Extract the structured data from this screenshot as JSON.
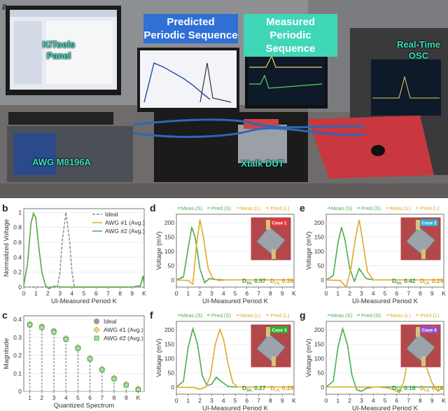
{
  "panel_labels": {
    "a": "a",
    "b": "b",
    "c": "c",
    "d": "d",
    "e": "e",
    "f": "f",
    "g": "g"
  },
  "photo": {
    "title_predicted": "Predicted\nPeriodic Sequence",
    "title_measured": "Measured\nPeriodic Sequence",
    "label_panel": "KiTools\nPanel",
    "label_osc": "Real-Time\nOSC",
    "label_awg": "AWG M8196A",
    "label_dut": "Xtalk DUT"
  },
  "colors": {
    "meas": "#4caf50",
    "pred": "#e0a92a",
    "ideal": "#8c8c8c",
    "green_text": "#3a9c3a",
    "gold_text": "#d59c1a"
  },
  "chart_data": [
    {
      "id": "b",
      "type": "line",
      "xlabel": "UI-Measured Period K",
      "ylabel": "Normalized Voltage",
      "xticks": [
        "0",
        "1",
        "2",
        "3",
        "4",
        "5",
        "6",
        "7",
        "8",
        "9",
        "K"
      ],
      "yticks": [
        "0",
        "0.2",
        "0.4",
        "0.6",
        "0.8",
        "1"
      ],
      "xlim": [
        0,
        10
      ],
      "ylim": [
        0,
        1.05
      ],
      "legend": [
        "Ideal",
        "AWG #1 (Avg.)",
        "AWG #2 (Avg.)"
      ],
      "legend_position": "top-right",
      "series": [
        {
          "name": "Ideal",
          "x": [
            0,
            2.8,
            3.0,
            3.2,
            3.5,
            3.8,
            4.0,
            4.2,
            10
          ],
          "y": [
            0,
            0,
            0.2,
            0.62,
            1.0,
            0.62,
            0.2,
            0,
            0
          ]
        },
        {
          "name": "AWG #1 (Avg.)",
          "x": [
            0,
            0.3,
            0.6,
            0.8,
            1.0,
            1.2,
            1.5,
            1.8,
            2.1,
            2.5,
            3,
            4,
            5,
            6,
            7,
            8,
            9,
            9.7,
            9.9,
            10
          ],
          "y": [
            0.03,
            0.3,
            0.85,
            0.98,
            0.92,
            0.6,
            0.2,
            0.02,
            -0.02,
            0.01,
            0,
            0,
            0,
            0,
            0,
            0,
            0,
            0.02,
            0.15,
            0.03
          ]
        },
        {
          "name": "AWG #2 (Avg.)",
          "x": [
            0,
            0.3,
            0.6,
            0.8,
            1.0,
            1.2,
            1.5,
            1.8,
            2.1,
            2.5,
            3,
            4,
            5,
            6,
            7,
            8,
            9,
            9.7,
            9.9,
            10
          ],
          "y": [
            0.03,
            0.3,
            0.86,
            0.99,
            0.93,
            0.6,
            0.2,
            0.02,
            -0.02,
            0.01,
            0,
            0,
            0,
            0,
            0,
            0,
            0,
            0.02,
            0.15,
            0.03
          ]
        }
      ]
    },
    {
      "id": "c",
      "type": "scatter",
      "xlabel": "Quantized Spectrum",
      "ylabel": "Magnitude",
      "xticks": [
        "1",
        "2",
        "3",
        "4",
        "5",
        "6",
        "7",
        "8",
        "9",
        "K"
      ],
      "yticks": [
        "0",
        "0.1",
        "0.2",
        "0.3",
        "0.4"
      ],
      "xlim": [
        0.5,
        10.5
      ],
      "ylim": [
        0,
        0.42
      ],
      "legend": [
        "Ideal",
        "AWG #1 (Avg.)",
        "AWG #2 (Avg.)"
      ],
      "legend_position": "top-right",
      "series": [
        {
          "name": "Ideal",
          "x": [
            1,
            2,
            3,
            4,
            5,
            6,
            7,
            8,
            9,
            10
          ],
          "y": [
            0.37,
            0.36,
            0.335,
            0.29,
            0.24,
            0.18,
            0.12,
            0.07,
            0.035,
            0.01
          ]
        },
        {
          "name": "AWG #1 (Avg.)",
          "x": [
            1,
            2,
            3,
            4,
            5,
            6,
            7,
            8,
            9,
            10
          ],
          "y": [
            0.375,
            0.36,
            0.335,
            0.295,
            0.245,
            0.185,
            0.125,
            0.075,
            0.04,
            0.015
          ]
        },
        {
          "name": "AWG #2 (Avg.)",
          "x": [
            1,
            2,
            3,
            4,
            5,
            6,
            7,
            8,
            9,
            10
          ],
          "y": [
            0.37,
            0.355,
            0.33,
            0.29,
            0.24,
            0.18,
            0.12,
            0.07,
            0.035,
            0.01
          ]
        }
      ]
    },
    {
      "id": "d",
      "type": "line",
      "case_label": "Case 1",
      "case_color": "#e23b3b",
      "xlabel": "UI-Measured Period K",
      "ylabel": "Voltage (mV)",
      "xticks": [
        "0",
        "1",
        "2",
        "3",
        "4",
        "5",
        "6",
        "7",
        "8",
        "9",
        "K"
      ],
      "yticks": [
        "0",
        "50",
        "100",
        "150",
        "200"
      ],
      "xlim": [
        0,
        10
      ],
      "ylim": [
        -25,
        230
      ],
      "legend": [
        "Meas.(S)",
        "Pred.(S)",
        "Meas.(L)",
        "Pred.(L)"
      ],
      "d_s_label": "D",
      "d_s_sub": "S/L",
      "d_s_value": "0.57",
      "d_l_label": "D",
      "d_l_sub": "L/L",
      "d_l_value": "0.39",
      "series": [
        {
          "name": "Meas.(S)",
          "x": [
            0,
            0.6,
            1.0,
            1.3,
            1.6,
            2.0,
            2.4,
            2.8,
            3.2,
            4,
            5,
            6,
            7,
            8,
            9,
            10
          ],
          "y": [
            0,
            10,
            110,
            185,
            150,
            40,
            -10,
            5,
            2,
            0,
            0,
            0,
            0,
            0,
            0,
            0
          ]
        },
        {
          "name": "Pred.(S)",
          "x": [
            0,
            0.6,
            1.0,
            1.3,
            1.6,
            2.0,
            2.4,
            2.8,
            3.2,
            4,
            5,
            6,
            7,
            8,
            9,
            10
          ],
          "y": [
            0,
            12,
            112,
            182,
            148,
            38,
            -8,
            5,
            2,
            0,
            0,
            0,
            0,
            0,
            0,
            0
          ]
        },
        {
          "name": "Meas.(L)",
          "x": [
            0,
            1.0,
            1.4,
            1.7,
            2.0,
            2.3,
            2.7,
            3.1,
            3.6,
            4.2,
            5,
            6,
            7,
            8,
            9,
            10
          ],
          "y": [
            0,
            -2,
            -15,
            120,
            210,
            150,
            40,
            5,
            -2,
            0,
            0,
            0,
            0,
            0,
            0,
            0
          ]
        },
        {
          "name": "Pred.(L)",
          "x": [
            0,
            1.0,
            1.4,
            1.7,
            2.0,
            2.3,
            2.7,
            3.1,
            3.6,
            4.2,
            5,
            6,
            7,
            8,
            9,
            10
          ],
          "y": [
            0,
            -2,
            -14,
            118,
            212,
            148,
            40,
            5,
            -2,
            0,
            0,
            0,
            0,
            0,
            0,
            0
          ]
        }
      ]
    },
    {
      "id": "e",
      "type": "line",
      "case_label": "Case 2",
      "case_color": "#3aa6d6",
      "xlabel": "UI-Measured Period K",
      "ylabel": "Voltage (mV)",
      "xticks": [
        "0",
        "1",
        "2",
        "3",
        "4",
        "5",
        "6",
        "7",
        "8",
        "9",
        "K"
      ],
      "yticks": [
        "0",
        "50",
        "100",
        "150",
        "200"
      ],
      "xlim": [
        0,
        10
      ],
      "ylim": [
        -25,
        230
      ],
      "legend": [
        "Meas.(S)",
        "Pred.(S)",
        "Meas.(L)",
        "Pred.(L)"
      ],
      "d_s_label": "D",
      "d_s_sub": "S/L",
      "d_s_value": "0.42",
      "d_l_label": "D",
      "d_l_sub": "L/L",
      "d_l_value": "0.29",
      "series": [
        {
          "name": "Meas.(S)",
          "x": [
            0,
            0.6,
            1.0,
            1.3,
            1.6,
            2.0,
            2.4,
            2.8,
            3.4,
            4,
            5,
            6,
            7,
            8,
            9,
            10
          ],
          "y": [
            0,
            15,
            130,
            185,
            140,
            40,
            -5,
            40,
            5,
            0,
            0,
            0,
            0,
            0,
            0,
            0
          ]
        },
        {
          "name": "Pred.(S)",
          "x": [
            0,
            0.6,
            1.0,
            1.3,
            1.6,
            2.0,
            2.4,
            2.8,
            3.4,
            4,
            5,
            6,
            7,
            8,
            9,
            10
          ],
          "y": [
            0,
            16,
            128,
            183,
            138,
            40,
            -5,
            38,
            5,
            0,
            0,
            0,
            0,
            0,
            0,
            0
          ]
        },
        {
          "name": "Meas.(L)",
          "x": [
            0,
            1.2,
            1.7,
            2.1,
            2.5,
            2.8,
            3.1,
            3.5,
            4.0,
            4.6,
            5,
            6,
            7,
            8,
            9,
            10
          ],
          "y": [
            0,
            -2,
            -25,
            40,
            150,
            210,
            140,
            30,
            0,
            0,
            0,
            0,
            0,
            0,
            0,
            0
          ]
        },
        {
          "name": "Pred.(L)",
          "x": [
            0,
            1.2,
            1.7,
            2.1,
            2.5,
            2.8,
            3.1,
            3.5,
            4.0,
            4.6,
            5,
            6,
            7,
            8,
            9,
            10
          ],
          "y": [
            0,
            -2,
            -24,
            38,
            148,
            212,
            138,
            30,
            0,
            0,
            0,
            0,
            0,
            0,
            0,
            0
          ]
        }
      ]
    },
    {
      "id": "f",
      "type": "line",
      "case_label": "Case 3",
      "case_color": "#2fae2f",
      "xlabel": "UI-Measured Period K",
      "ylabel": "Voltage (mV)",
      "xticks": [
        "0",
        "1",
        "2",
        "3",
        "4",
        "5",
        "6",
        "7",
        "8",
        "9",
        "K"
      ],
      "yticks": [
        "0",
        "50",
        "100",
        "150",
        "200"
      ],
      "xlim": [
        0,
        10
      ],
      "ylim": [
        -25,
        230
      ],
      "legend": [
        "Meas.(S)",
        "Pred.(S)",
        "Meas.(L)",
        "Pred.(L)"
      ],
      "d_s_label": "D",
      "d_s_sub": "S/L",
      "d_s_value": "0.27",
      "d_l_label": "D",
      "d_l_sub": "L/L",
      "d_l_value": "0.25",
      "series": [
        {
          "name": "Meas.(S)",
          "x": [
            0,
            0.6,
            1.0,
            1.4,
            1.8,
            2.2,
            2.6,
            3.0,
            3.4,
            3.8,
            4.4,
            5,
            6,
            7,
            8,
            9,
            10
          ],
          "y": [
            0,
            20,
            140,
            205,
            150,
            40,
            5,
            10,
            35,
            20,
            2,
            0,
            0,
            0,
            0,
            0,
            0
          ]
        },
        {
          "name": "Pred.(S)",
          "x": [
            0,
            0.6,
            1.0,
            1.4,
            1.8,
            2.2,
            2.6,
            3.0,
            3.4,
            3.8,
            4.4,
            5,
            6,
            7,
            8,
            9,
            10
          ],
          "y": [
            0,
            21,
            138,
            203,
            148,
            40,
            5,
            10,
            33,
            20,
            2,
            0,
            0,
            0,
            0,
            0,
            0
          ]
        },
        {
          "name": "Meas.(L)",
          "x": [
            0,
            1.5,
            2.0,
            2.5,
            2.9,
            3.3,
            3.7,
            4.0,
            4.4,
            4.8,
            5.2,
            5.8,
            6.5,
            7,
            8,
            9,
            10
          ],
          "y": [
            0,
            -2,
            -8,
            0,
            40,
            150,
            200,
            170,
            80,
            15,
            0,
            0,
            0,
            0,
            0,
            0,
            0
          ]
        },
        {
          "name": "Pred.(L)",
          "x": [
            0,
            1.5,
            2.0,
            2.5,
            2.9,
            3.3,
            3.7,
            4.0,
            4.4,
            4.8,
            5.2,
            5.8,
            6.5,
            7,
            8,
            9,
            10
          ],
          "y": [
            0,
            -2,
            -7,
            0,
            38,
            148,
            202,
            168,
            80,
            15,
            0,
            0,
            0,
            0,
            0,
            0,
            0
          ]
        }
      ]
    },
    {
      "id": "g",
      "type": "line",
      "case_label": "Case 4",
      "case_color": "#9b4dc9",
      "xlabel": "UI-Measured Period K",
      "ylabel": "Voltage (mV)",
      "xticks": [
        "0",
        "1",
        "2",
        "3",
        "4",
        "5",
        "6",
        "7",
        "8",
        "9",
        "K"
      ],
      "yticks": [
        "0",
        "50",
        "100",
        "150",
        "200"
      ],
      "xlim": [
        0,
        10
      ],
      "ylim": [
        -25,
        230
      ],
      "legend": [
        "Meas.(S)",
        "Pred.(S)",
        "Meas.(L)",
        "Pred.(L)"
      ],
      "d_s_label": "D",
      "d_s_sub": "S/L",
      "d_s_value": "0.18",
      "d_l_label": "D",
      "d_l_sub": "L/L",
      "d_l_value": "0.16",
      "series": [
        {
          "name": "Meas.(S)",
          "x": [
            0,
            0.6,
            1.0,
            1.4,
            1.8,
            2.2,
            2.6,
            3.0,
            3.4,
            4,
            5,
            6,
            7,
            8,
            9,
            10
          ],
          "y": [
            0,
            20,
            140,
            205,
            150,
            40,
            -10,
            -15,
            -5,
            0,
            0,
            0,
            0,
            0,
            0,
            0
          ]
        },
        {
          "name": "Pred.(S)",
          "x": [
            0,
            0.6,
            1.0,
            1.4,
            1.8,
            2.2,
            2.6,
            3.0,
            3.4,
            4,
            5,
            6,
            7,
            8,
            9,
            10
          ],
          "y": [
            0,
            21,
            138,
            203,
            148,
            40,
            -9,
            -14,
            -5,
            0,
            0,
            0,
            0,
            0,
            0,
            0
          ]
        },
        {
          "name": "Meas.(L)",
          "x": [
            0,
            3.5,
            4.5,
            5.2,
            5.8,
            6.2,
            6.6,
            7.0,
            7.4,
            7.8,
            8.2,
            8.6,
            9,
            9.5,
            10
          ],
          "y": [
            0,
            0,
            0,
            -3,
            -10,
            -20,
            20,
            110,
            195,
            200,
            150,
            60,
            15,
            -15,
            0
          ]
        },
        {
          "name": "Pred.(L)",
          "x": [
            0,
            3.5,
            4.5,
            5.2,
            5.8,
            6.2,
            6.6,
            7.0,
            7.4,
            7.8,
            8.2,
            8.6,
            9,
            9.5,
            10
          ],
          "y": [
            0,
            0,
            0,
            -3,
            -10,
            -19,
            20,
            108,
            193,
            202,
            148,
            60,
            15,
            -14,
            0
          ]
        }
      ]
    }
  ]
}
